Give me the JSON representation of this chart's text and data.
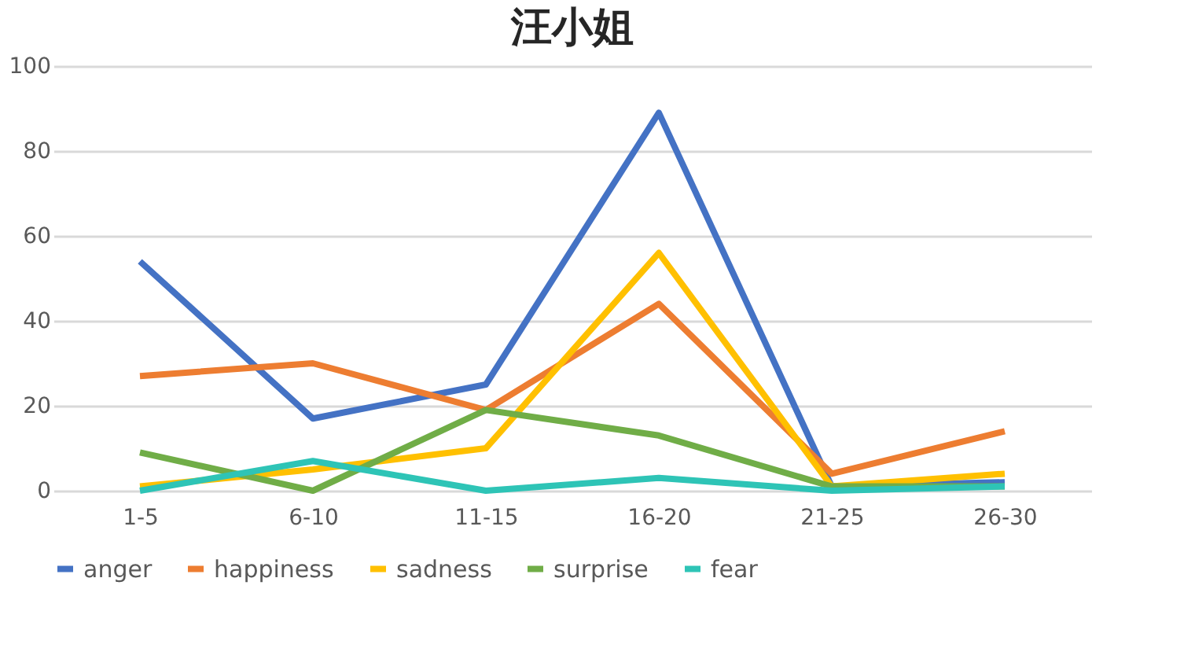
{
  "chart_data": {
    "type": "line",
    "title": "汪小姐",
    "categories": [
      "1-5",
      "6-10",
      "11-15",
      "16-20",
      "21-25",
      "26-30"
    ],
    "series": [
      {
        "name": "anger",
        "color": "#4472c4",
        "values": [
          54,
          17,
          25,
          89,
          1,
          2
        ]
      },
      {
        "name": "happiness",
        "color": "#ed7d31",
        "values": [
          27,
          30,
          19,
          44,
          4,
          14
        ]
      },
      {
        "name": "sadness",
        "color": "#ffc000",
        "values": [
          1,
          5,
          10,
          56,
          1,
          4
        ]
      },
      {
        "name": "surprise",
        "color": "#70ad47",
        "values": [
          9,
          0,
          19,
          13,
          1,
          1
        ]
      },
      {
        "name": "fear",
        "color": "#2ec4b6",
        "values": [
          0,
          7,
          0,
          3,
          0,
          1
        ]
      }
    ],
    "ylim": [
      0,
      100
    ],
    "yticks": [
      0,
      20,
      40,
      60,
      80,
      100
    ],
    "grid": "y",
    "legend": "bottom",
    "marker": "none",
    "line_style": "solid"
  }
}
